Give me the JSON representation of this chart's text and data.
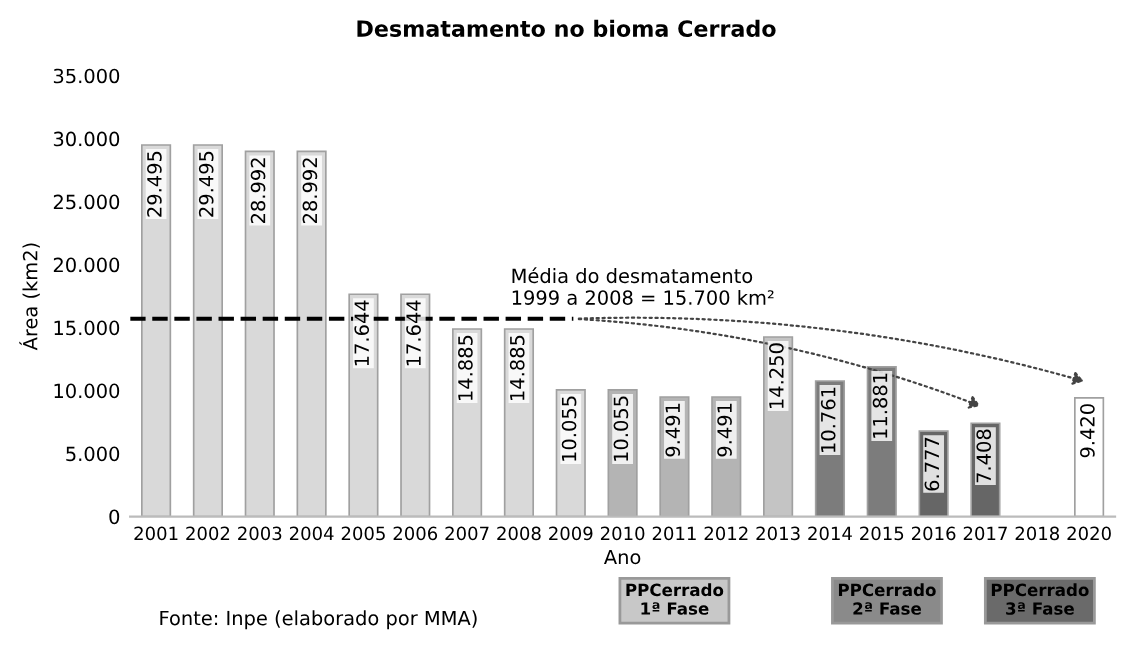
{
  "chart_data": {
    "type": "bar",
    "title": "Desmatamento no bioma Cerrado",
    "xlabel": "Ano",
    "ylabel": "Área (km2)",
    "categories": [
      "2001",
      "2002",
      "2003",
      "2004",
      "2005",
      "2006",
      "2007",
      "2008",
      "2009",
      "2010",
      "2011",
      "2012",
      "2013",
      "2014",
      "2015",
      "2016",
      "2017",
      "2018",
      "2020"
    ],
    "values": [
      29495,
      29495,
      28992,
      28992,
      17644,
      17644,
      14885,
      14885,
      10055,
      10055,
      9491,
      9491,
      14250,
      10761,
      11881,
      6777,
      7408,
      null,
      9420
    ],
    "colors": [
      "#d9d9d9",
      "#d9d9d9",
      "#d9d9d9",
      "#d9d9d9",
      "#d9d9d9",
      "#d9d9d9",
      "#d9d9d9",
      "#d9d9d9",
      "#d9d9d9",
      "#b4b4b4",
      "#b4b4b4",
      "#b4b4b4",
      "#c4c4c4",
      "#7c7c7c",
      "#7c7c7c",
      "#666666",
      "#666666",
      "#ffffff",
      "#ffffff"
    ],
    "value_labels": [
      "29.495",
      "29.495",
      "28.992",
      "28.992",
      "17.644",
      "17.644",
      "14.885",
      "14.885",
      "10.055",
      "10.055",
      "9.491",
      "9.491",
      "14.250",
      "10.761",
      "11.881",
      "6.777",
      "7.408",
      null,
      "9.420"
    ],
    "ylim": [
      0,
      35000
    ],
    "yticks": [
      {
        "value": 0,
        "label": "0"
      },
      {
        "value": 5000,
        "label": "5.000"
      },
      {
        "value": 10000,
        "label": "10.000"
      },
      {
        "value": 15000,
        "label": "15.000"
      },
      {
        "value": 20000,
        "label": "20.000"
      },
      {
        "value": 25000,
        "label": "25.000"
      },
      {
        "value": 30000,
        "label": "30.000"
      },
      {
        "value": 35000,
        "label": "35.000"
      }
    ],
    "ref_lines": [
      {
        "axis": "y",
        "value": 15700,
        "label": "Média do desmatamento\n1999 a 2008 = 15.700 km²",
        "color": "#000000",
        "line_style": "dashed"
      }
    ],
    "annotations": [
      "Fonte: Inpe (elaborado por MMA)",
      "PPCerrado\n1ª Fase",
      "PPCerrado\n2ª Fase",
      "PPCerrado\n3ª Fase"
    ],
    "grid": false
  }
}
